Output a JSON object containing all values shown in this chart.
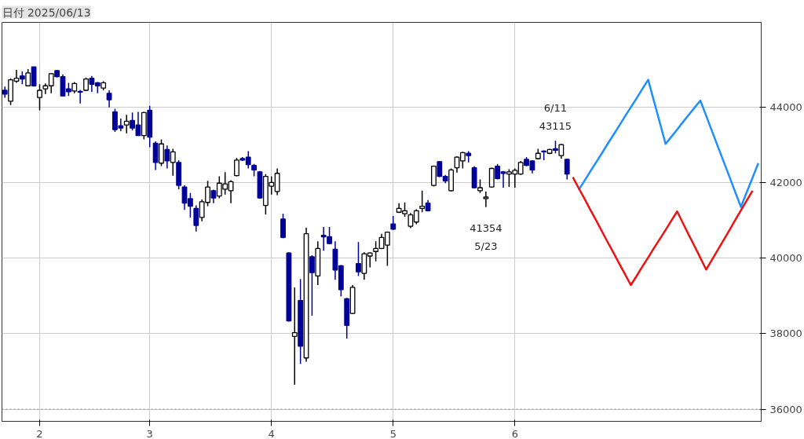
{
  "chart_data": {
    "type": "candlestick",
    "title": "日付 2025/06/13",
    "categories": [
      null,
      null,
      null,
      null,
      null,
      null,
      "2",
      null,
      null,
      null,
      null,
      null,
      null,
      null,
      null,
      null,
      null,
      null,
      null,
      null,
      null,
      null,
      null,
      null,
      null,
      "3",
      null,
      null,
      null,
      null,
      null,
      null,
      null,
      null,
      null,
      null,
      null,
      null,
      null,
      null,
      null,
      null,
      null,
      null,
      null,
      null,
      "4",
      null,
      null,
      null,
      null,
      null,
      null,
      null,
      null,
      null,
      null,
      null,
      null,
      null,
      null,
      null,
      null,
      null,
      null,
      null,
      null,
      "5",
      null,
      null,
      null,
      null,
      null,
      null,
      null,
      null,
      null,
      null,
      null,
      null,
      null,
      null,
      null,
      null,
      null,
      null,
      null,
      null,
      "6",
      null,
      null,
      null,
      null,
      null,
      null,
      null,
      null,
      null,
      null,
      null,
      null,
      null,
      null,
      null,
      null,
      null,
      null,
      null,
      null,
      null,
      null,
      null,
      null,
      null,
      null,
      null,
      null,
      null,
      null,
      null,
      null,
      null,
      null,
      null,
      null,
      null,
      null,
      null,
      null,
      null,
      null
    ],
    "ylim": [
      35680,
      46250
    ],
    "yticks": [
      36000,
      38000,
      40000,
      42000,
      44000
    ],
    "grid": true,
    "series": [
      {
        "colors": [
          "#000099",
          "#ffffff",
          "#ffffff",
          "#000099",
          "#ffffff",
          "#000099",
          "#ffffff",
          "#ffffff",
          "#ffffff",
          "#000099",
          "#000099",
          "#000099",
          "#ffffff",
          "#000099",
          "#ffffff",
          "#000099",
          "#000099",
          "#ffffff",
          "#000099",
          "#000099",
          "#000099",
          "#ffffff",
          "#000099",
          "#000099",
          "#ffffff",
          "#000099",
          "#000099",
          "#ffffff",
          "#000099",
          "#ffffff",
          "#000099",
          "#000099",
          "#000099",
          "#000099",
          "#ffffff",
          "#ffffff",
          "#000099",
          "#ffffff",
          "#ffffff",
          "#ffffff",
          "#ffffff",
          "#000099",
          "#000099",
          "#000099",
          "#000099",
          "#ffffff",
          "#ffffff",
          "#ffffff",
          "#000099",
          "#000099",
          "#ffffff",
          "#000099",
          "#ffffff",
          "#000099",
          "#ffffff",
          "#000099",
          "#000099",
          "#000099",
          "#000099",
          "#000099",
          "#ffffff",
          "#000099",
          "#ffffff",
          "#ffffff",
          "#ffffff",
          "#ffffff",
          "#ffffff",
          "#000099",
          "#ffffff",
          "#ffffff",
          "#ffffff",
          "#ffffff",
          "#ffffff",
          "#000099",
          "#ffffff",
          "#000099",
          "#000099",
          "#ffffff",
          "#ffffff",
          "#ffffff",
          "#000099",
          "#000099",
          "#ffffff",
          "#ffffff",
          "#ffffff",
          "#000099",
          "#000099",
          "#ffffff",
          "#ffffff",
          "#ffffff",
          "#000099",
          "#000099",
          "#ffffff",
          "#000099",
          "#ffffff",
          "#000099",
          "#ffffff",
          "#000099",
          null,
          null,
          null,
          null,
          null,
          null,
          null,
          null,
          null,
          null,
          null,
          null,
          null,
          null,
          null,
          null,
          null,
          null,
          null,
          null,
          null,
          null,
          null,
          null,
          null,
          null,
          null,
          null,
          null,
          null,
          null,
          null,
          null
        ],
        "ohlc": [
          [
            44450,
            44550,
            44250,
            44350
          ],
          [
            44160,
            44770,
            44060,
            44730
          ],
          [
            44690,
            44990,
            44650,
            44770
          ],
          [
            44830,
            44950,
            44610,
            44750
          ],
          [
            44570,
            45010,
            44560,
            44910
          ],
          [
            45070,
            45070,
            44550,
            44570
          ],
          [
            44260,
            44610,
            43920,
            44450
          ],
          [
            44490,
            44630,
            44350,
            44570
          ],
          [
            44570,
            44910,
            44370,
            44890
          ],
          [
            44970,
            44990,
            44790,
            44810
          ],
          [
            44810,
            44870,
            44300,
            44300
          ],
          [
            44490,
            44650,
            44300,
            44410
          ],
          [
            44430,
            44670,
            44370,
            44630
          ],
          [
            44420,
            44460,
            44100,
            44400
          ],
          [
            44450,
            44790,
            44430,
            44750
          ],
          [
            44770,
            44830,
            44410,
            44610
          ],
          [
            44650,
            44670,
            44370,
            44570
          ],
          [
            44510,
            44690,
            44450,
            44650
          ],
          [
            44370,
            44450,
            44000,
            44200
          ],
          [
            43880,
            43960,
            43350,
            43410
          ],
          [
            43510,
            43700,
            43370,
            43450
          ],
          [
            43530,
            43800,
            43310,
            43630
          ],
          [
            43650,
            43860,
            43390,
            43450
          ],
          [
            43530,
            43880,
            43250,
            43250
          ],
          [
            43250,
            43880,
            43150,
            43860
          ],
          [
            43920,
            44040,
            42940,
            43210
          ],
          [
            43050,
            43100,
            42340,
            42540
          ],
          [
            42520,
            43150,
            42440,
            43030
          ],
          [
            42880,
            42990,
            42380,
            42580
          ],
          [
            42540,
            42900,
            42190,
            42820
          ],
          [
            42540,
            42600,
            41830,
            41930
          ],
          [
            41890,
            41930,
            41280,
            41460
          ],
          [
            41580,
            41730,
            41080,
            41380
          ],
          [
            41320,
            41400,
            40710,
            40870
          ],
          [
            41080,
            41560,
            40980,
            41500
          ],
          [
            41480,
            42050,
            41380,
            41890
          ],
          [
            41790,
            41820,
            41460,
            41600
          ],
          [
            41650,
            42170,
            41590,
            41990
          ],
          [
            41830,
            42280,
            41690,
            41970
          ],
          [
            41790,
            42070,
            41460,
            42030
          ],
          [
            42190,
            42660,
            42170,
            42600
          ],
          [
            42640,
            42680,
            42580,
            42600
          ],
          [
            42680,
            42840,
            42380,
            42480
          ],
          [
            42460,
            42500,
            42170,
            42340
          ],
          [
            42290,
            42310,
            41580,
            41600
          ],
          [
            41400,
            42230,
            41160,
            42170
          ],
          [
            41910,
            42170,
            41690,
            42010
          ],
          [
            41770,
            42380,
            41670,
            42250
          ],
          [
            41040,
            41180,
            40530,
            40550
          ],
          [
            40140,
            40160,
            38320,
            38340
          ],
          [
            37930,
            39230,
            36650,
            38030
          ],
          [
            38880,
            39450,
            37200,
            37670
          ],
          [
            37360,
            40810,
            37260,
            40650
          ],
          [
            40040,
            40080,
            38480,
            39620
          ],
          [
            39530,
            40450,
            39290,
            40260
          ],
          [
            40610,
            40830,
            40200,
            40570
          ],
          [
            40570,
            40830,
            40370,
            40390
          ],
          [
            40240,
            40450,
            39430,
            39690
          ],
          [
            39800,
            39820,
            38990,
            39170
          ],
          [
            38930,
            38950,
            37870,
            38220
          ],
          [
            38540,
            39290,
            38520,
            39230
          ],
          [
            39860,
            40430,
            39530,
            39640
          ],
          [
            39600,
            40160,
            39430,
            40120
          ],
          [
            40060,
            40160,
            39760,
            40140
          ],
          [
            40180,
            40450,
            39920,
            40260
          ],
          [
            40260,
            40650,
            40240,
            40550
          ],
          [
            40350,
            40710,
            39800,
            40690
          ],
          [
            40910,
            41120,
            40750,
            40770
          ],
          [
            41220,
            41460,
            41200,
            41320
          ],
          [
            41180,
            41480,
            41100,
            41260
          ],
          [
            40850,
            41200,
            40800,
            41150
          ],
          [
            40960,
            41300,
            40900,
            41260
          ],
          [
            41320,
            41790,
            41220,
            41380
          ],
          [
            41460,
            41540,
            41240,
            41260
          ],
          [
            41930,
            42460,
            41900,
            42440
          ],
          [
            42560,
            42560,
            42150,
            42170
          ],
          [
            42170,
            42210,
            41990,
            42050
          ],
          [
            41790,
            42380,
            41770,
            42340
          ],
          [
            42400,
            42700,
            42270,
            42680
          ],
          [
            42580,
            42820,
            42380,
            42800
          ],
          [
            42780,
            42840,
            42540,
            42720
          ],
          [
            42400,
            42440,
            41850,
            41870
          ],
          [
            41790,
            42090,
            41730,
            41870
          ],
          [
            41580,
            41770,
            41354,
            41620
          ],
          [
            41890,
            42400,
            41870,
            42380
          ],
          [
            42440,
            42500,
            42090,
            42110
          ],
          [
            42290,
            42310,
            41870,
            42250
          ],
          [
            42230,
            42360,
            41890,
            42290
          ],
          [
            42230,
            42380,
            41870,
            42330
          ],
          [
            42230,
            42580,
            42210,
            42540
          ],
          [
            42620,
            42680,
            42440,
            42460
          ],
          [
            42580,
            42600,
            42250,
            42340
          ],
          [
            42640,
            42900,
            42620,
            42780
          ],
          [
            42840,
            42860,
            42600,
            42820
          ],
          [
            42780,
            42900,
            42760,
            42880
          ],
          [
            42900,
            43115,
            42780,
            42860
          ],
          [
            42720,
            43030,
            42640,
            43010
          ],
          [
            42620,
            42640,
            42090,
            42230
          ],
          null,
          null,
          null,
          null,
          null,
          null,
          null,
          null,
          null,
          null,
          null,
          null,
          null,
          null,
          null,
          null,
          null,
          null,
          null,
          null,
          null,
          null,
          null,
          null,
          null,
          null,
          null,
          null,
          null,
          null,
          null,
          null,
          null
        ]
      },
      {
        "type": "line",
        "color": "#1e8fff",
        "values": [
          null,
          null,
          null,
          null,
          null,
          null,
          null,
          null,
          null,
          null,
          null,
          null,
          null,
          null,
          null,
          null,
          null,
          null,
          null,
          null,
          null,
          null,
          null,
          null,
          null,
          null,
          null,
          null,
          null,
          null,
          null,
          null,
          null,
          null,
          null,
          null,
          null,
          null,
          null,
          null,
          null,
          null,
          null,
          null,
          null,
          null,
          null,
          null,
          null,
          null,
          null,
          null,
          null,
          null,
          null,
          null,
          null,
          null,
          null,
          null,
          null,
          null,
          null,
          null,
          null,
          null,
          null,
          null,
          null,
          null,
          null,
          null,
          null,
          null,
          null,
          null,
          null,
          null,
          null,
          null,
          null,
          null,
          null,
          null,
          null,
          null,
          null,
          null,
          null,
          null,
          null,
          null,
          null,
          null,
          null,
          null,
          null,
          null,
          null,
          41810,
          42050,
          42300,
          42540,
          42780,
          43030,
          43270,
          43510,
          43760,
          44000,
          44240,
          44490,
          44730,
          44160,
          43600,
          43030,
          43220,
          43410,
          43610,
          43800,
          43990,
          44180,
          43780,
          43370,
          42970,
          42570,
          42170,
          41760,
          41360,
          41750,
          42130,
          42520
        ]
      },
      {
        "type": "line",
        "color": "#ee1111",
        "values": [
          null,
          null,
          null,
          null,
          null,
          null,
          null,
          null,
          null,
          null,
          null,
          null,
          null,
          null,
          null,
          null,
          null,
          null,
          null,
          null,
          null,
          null,
          null,
          null,
          null,
          null,
          null,
          null,
          null,
          null,
          null,
          null,
          null,
          null,
          null,
          null,
          null,
          null,
          null,
          null,
          null,
          null,
          null,
          null,
          null,
          null,
          null,
          null,
          null,
          null,
          null,
          null,
          null,
          null,
          null,
          null,
          null,
          null,
          null,
          null,
          null,
          null,
          null,
          null,
          null,
          null,
          null,
          null,
          null,
          null,
          null,
          null,
          null,
          null,
          null,
          null,
          null,
          null,
          null,
          null,
          null,
          null,
          null,
          null,
          null,
          null,
          null,
          null,
          null,
          null,
          null,
          null,
          null,
          null,
          null,
          null,
          null,
          null,
          42150,
          41860,
          41580,
          41290,
          41010,
          40720,
          40430,
          40150,
          39860,
          39580,
          39290,
          39530,
          39780,
          40020,
          40270,
          40510,
          40750,
          41000,
          41240,
          40930,
          40620,
          40320,
          40010,
          39700,
          39960,
          40220,
          40480,
          40740,
          41010,
          41270,
          41530,
          41790,
          null
        ]
      }
    ],
    "ref_lines": [
      {
        "axis": "y",
        "value": 36000,
        "line_style": "dotted",
        "color": "#888888"
      }
    ],
    "annotations": [
      {
        "text": "6/11\n43115",
        "y": 43115
      },
      {
        "text": "41354\n5/23",
        "y": 41354
      }
    ]
  }
}
